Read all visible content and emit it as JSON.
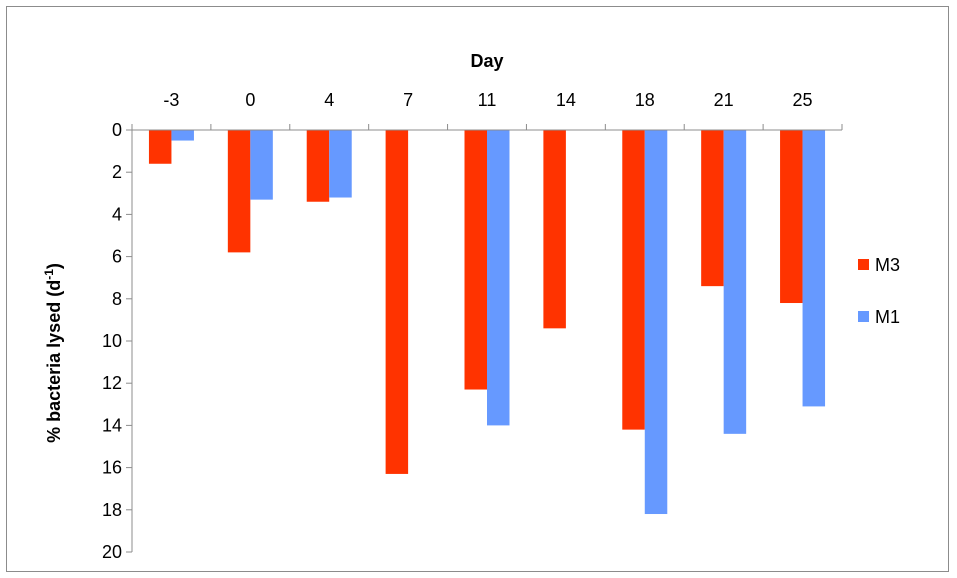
{
  "chart_data": {
    "type": "bar",
    "orientation": "vertical-inverted",
    "categories": [
      "-3",
      "0",
      "4",
      "7",
      "11",
      "14",
      "18",
      "21",
      "25"
    ],
    "series": [
      {
        "name": "M3",
        "color": "#FF3300",
        "values": [
          1.6,
          5.8,
          3.4,
          16.3,
          12.3,
          9.4,
          14.2,
          7.4,
          8.2
        ]
      },
      {
        "name": "M1",
        "color": "#6699FF",
        "values": [
          0.5,
          3.3,
          3.2,
          null,
          14.0,
          null,
          18.2,
          14.4,
          13.1
        ]
      }
    ],
    "title": "",
    "xlabel": "Day",
    "ylabel_main": "% bacteria lysed (d",
    "ylabel_sup": "-1",
    "ylabel_close": ")",
    "y_ticks": [
      "0",
      "2",
      "4",
      "6",
      "8",
      "10",
      "12",
      "14",
      "16",
      "18",
      "20"
    ],
    "ylim": [
      0,
      20
    ],
    "y_inverted": true,
    "x_axis_position": "top",
    "grid": false,
    "legend_position": "right"
  }
}
